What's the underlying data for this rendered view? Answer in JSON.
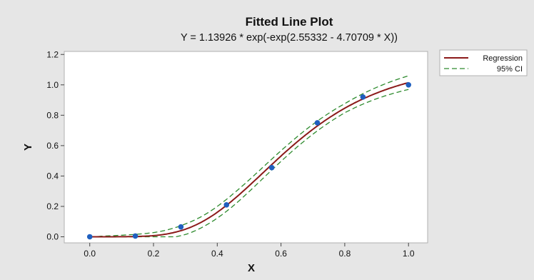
{
  "chart_data": {
    "type": "line",
    "title": "Fitted Line Plot",
    "subtitle": "Y = 1.13926 * exp(-exp(2.55332 - 4.70709 * X))",
    "xlabel": "X",
    "ylabel": "Y",
    "xlim": [
      -0.08,
      1.06
    ],
    "ylim": [
      -0.04,
      1.22
    ],
    "xticks": [
      "0.0",
      "0.2",
      "0.4",
      "0.6",
      "0.8",
      "1.0"
    ],
    "yticks": [
      "0.0",
      "0.2",
      "0.4",
      "0.6",
      "0.8",
      "1.0",
      "1.2"
    ],
    "grid": false,
    "legend_position": "top-right",
    "model": {
      "a": 1.13926,
      "b": 2.55332,
      "c": 4.70709
    },
    "ci_halfwidth": [
      {
        "x": 0.0,
        "w": 0.0
      },
      {
        "x": 0.2,
        "w": 0.02
      },
      {
        "x": 0.3,
        "w": 0.035
      },
      {
        "x": 0.45,
        "w": 0.04
      },
      {
        "x": 0.6,
        "w": 0.035
      },
      {
        "x": 0.8,
        "w": 0.03
      },
      {
        "x": 1.0,
        "w": 0.045
      }
    ],
    "points": [
      {
        "x": 0.0,
        "y": 0.0
      },
      {
        "x": 0.143,
        "y": 0.005
      },
      {
        "x": 0.286,
        "y": 0.065
      },
      {
        "x": 0.429,
        "y": 0.21
      },
      {
        "x": 0.571,
        "y": 0.455
      },
      {
        "x": 0.714,
        "y": 0.75
      },
      {
        "x": 0.857,
        "y": 0.92
      },
      {
        "x": 1.0,
        "y": 1.0
      }
    ],
    "series": [
      {
        "name": "Regression",
        "color": "#8b1a1a",
        "style": "solid"
      },
      {
        "name": "95% CI",
        "color": "#2e8b2e",
        "style": "dashed"
      }
    ],
    "point_color": "#1f5fbf"
  }
}
